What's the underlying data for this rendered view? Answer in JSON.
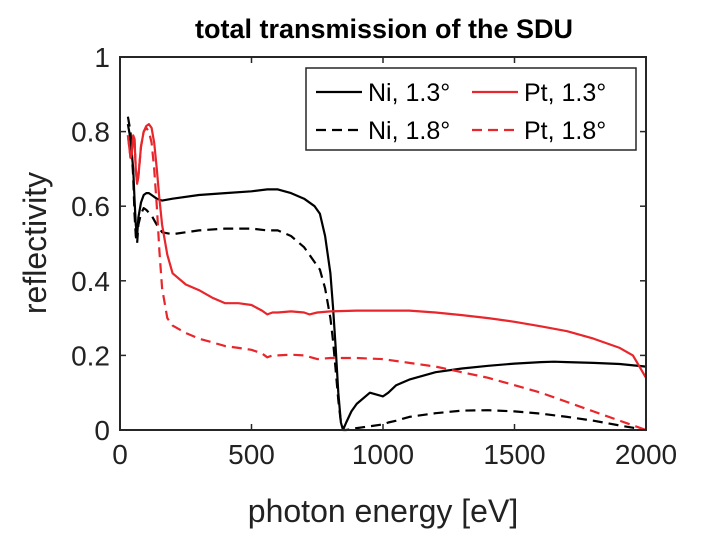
{
  "chart_data": {
    "type": "line",
    "title": "total transmission of the SDU",
    "xlabel": "photon energy [eV]",
    "ylabel": "reflectivity",
    "xlim": [
      0,
      2000
    ],
    "ylim": [
      0,
      1
    ],
    "xticks": [
      0,
      500,
      1000,
      1500,
      2000
    ],
    "xtick_labels": [
      "0",
      "500",
      "1000",
      "1500",
      "2000"
    ],
    "yticks": [
      0,
      0.2,
      0.4,
      0.6,
      0.8,
      1
    ],
    "ytick_labels": [
      "0",
      "0.2",
      "0.4",
      "0.6",
      "0.8",
      "1"
    ],
    "grid": false,
    "legend_position": "top-right",
    "series": [
      {
        "name": "Ni, 1.3°",
        "color": "#000000",
        "dash": "solid",
        "x": [
          30,
          40,
          50,
          55,
          60,
          65,
          70,
          80,
          90,
          100,
          110,
          120,
          140,
          160,
          200,
          300,
          400,
          500,
          560,
          600,
          650,
          700,
          740,
          760,
          780,
          800,
          810,
          820,
          830,
          840,
          848,
          860,
          880,
          900,
          950,
          1000,
          1020,
          1050,
          1100,
          1200,
          1300,
          1400,
          1500,
          1600,
          1650,
          1700,
          1800,
          1900,
          2000
        ],
        "y": [
          0.82,
          0.78,
          0.7,
          0.62,
          0.55,
          0.52,
          0.57,
          0.61,
          0.63,
          0.635,
          0.635,
          0.63,
          0.62,
          0.615,
          0.62,
          0.63,
          0.635,
          0.64,
          0.645,
          0.645,
          0.635,
          0.62,
          0.6,
          0.58,
          0.52,
          0.42,
          0.33,
          0.22,
          0.1,
          0.02,
          0.0,
          0.02,
          0.05,
          0.07,
          0.1,
          0.09,
          0.1,
          0.12,
          0.135,
          0.155,
          0.165,
          0.172,
          0.178,
          0.182,
          0.183,
          0.182,
          0.18,
          0.177,
          0.17
        ]
      },
      {
        "name": "Ni, 1.8°",
        "color": "#000000",
        "dash": "dashed",
        "x": [
          30,
          40,
          50,
          55,
          60,
          65,
          70,
          80,
          90,
          100,
          120,
          140,
          160,
          200,
          300,
          400,
          500,
          560,
          600,
          650,
          700,
          740,
          760,
          780,
          800,
          810,
          820,
          830,
          840,
          850,
          860,
          900,
          950,
          1000,
          1020,
          1050,
          1100,
          1200,
          1300,
          1400,
          1500,
          1600,
          1700,
          1800,
          1900,
          2000
        ],
        "y": [
          0.84,
          0.8,
          0.68,
          0.58,
          0.52,
          0.5,
          0.55,
          0.58,
          0.595,
          0.59,
          0.575,
          0.55,
          0.53,
          0.525,
          0.535,
          0.54,
          0.54,
          0.535,
          0.535,
          0.52,
          0.49,
          0.45,
          0.43,
          0.38,
          0.3,
          0.24,
          0.16,
          0.08,
          0.02,
          0.0,
          0.0,
          0.005,
          0.01,
          0.015,
          0.02,
          0.025,
          0.035,
          0.045,
          0.052,
          0.053,
          0.05,
          0.044,
          0.035,
          0.025,
          0.012,
          0.0
        ]
      },
      {
        "name": "Pt, 1.3°",
        "color": "#e8262b",
        "dash": "solid",
        "x": [
          30,
          35,
          40,
          45,
          50,
          55,
          60,
          65,
          70,
          75,
          80,
          90,
          100,
          110,
          120,
          130,
          140,
          150,
          160,
          180,
          200,
          250,
          300,
          350,
          400,
          450,
          500,
          540,
          560,
          580,
          600,
          650,
          700,
          720,
          750,
          800,
          900,
          1000,
          1100,
          1200,
          1300,
          1400,
          1500,
          1600,
          1700,
          1800,
          1900,
          1950,
          2000
        ],
        "y": [
          0.79,
          0.76,
          0.73,
          0.74,
          0.79,
          0.78,
          0.7,
          0.66,
          0.68,
          0.72,
          0.76,
          0.8,
          0.815,
          0.82,
          0.81,
          0.77,
          0.7,
          0.62,
          0.55,
          0.47,
          0.42,
          0.39,
          0.375,
          0.355,
          0.34,
          0.34,
          0.335,
          0.32,
          0.31,
          0.315,
          0.315,
          0.318,
          0.315,
          0.31,
          0.315,
          0.318,
          0.32,
          0.32,
          0.32,
          0.315,
          0.308,
          0.3,
          0.29,
          0.278,
          0.265,
          0.245,
          0.22,
          0.2,
          0.14
        ]
      },
      {
        "name": "Pt, 1.8°",
        "color": "#e8262b",
        "dash": "dashed",
        "x": [
          30,
          35,
          40,
          45,
          50,
          55,
          60,
          65,
          70,
          75,
          80,
          90,
          100,
          110,
          120,
          130,
          140,
          150,
          160,
          180,
          200,
          250,
          300,
          350,
          400,
          450,
          500,
          540,
          560,
          580,
          600,
          650,
          700,
          750,
          800,
          900,
          1000,
          1100,
          1200,
          1300,
          1400,
          1500,
          1600,
          1700,
          1800,
          1900,
          2000
        ],
        "y": [
          0.79,
          0.76,
          0.73,
          0.74,
          0.79,
          0.78,
          0.7,
          0.66,
          0.68,
          0.72,
          0.76,
          0.8,
          0.81,
          0.8,
          0.77,
          0.7,
          0.6,
          0.48,
          0.38,
          0.3,
          0.28,
          0.26,
          0.245,
          0.235,
          0.225,
          0.22,
          0.215,
          0.205,
          0.195,
          0.2,
          0.2,
          0.202,
          0.2,
          0.19,
          0.193,
          0.193,
          0.19,
          0.18,
          0.17,
          0.155,
          0.14,
          0.12,
          0.1,
          0.075,
          0.05,
          0.025,
          0.0
        ]
      }
    ]
  }
}
